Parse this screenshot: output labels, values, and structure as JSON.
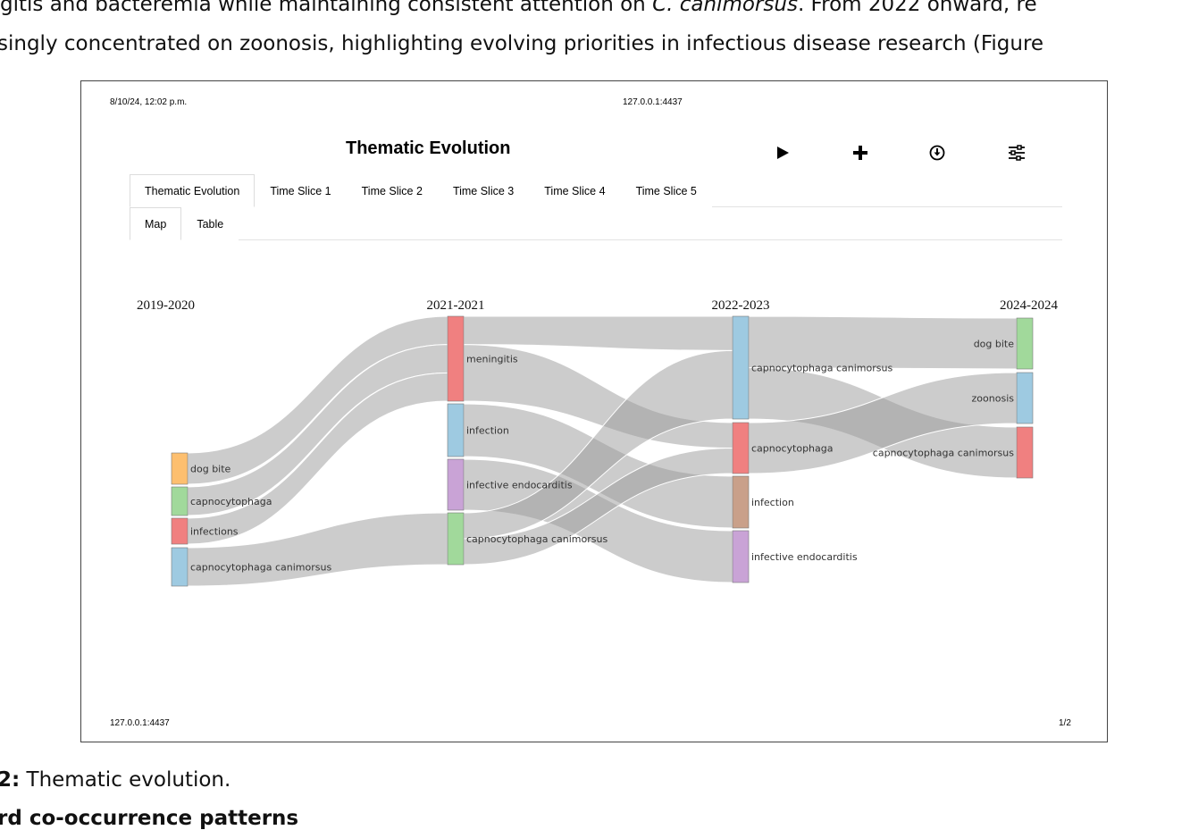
{
  "document": {
    "para_line_1_a": "gitis and bacteremia while maintaining consistent attention on ",
    "para_line_1_species": "C. canimorsus",
    "para_line_1_b": ". From 2022 onward, re",
    "para_line_2": "singly concentrated on zoonosis, highlighting evolving priorities in infectious disease research (Figure",
    "caption_label": "2:",
    "caption_text": " Thematic evolution.",
    "next_heading": "rd co-occurrence patterns"
  },
  "browser_print": {
    "date": "8/10/24, 12:02 p.m.",
    "url": "127.0.0.1:4437",
    "footer_url": "127.0.0.1:4437",
    "page": "1/2"
  },
  "app": {
    "title": "Thematic Evolution",
    "toolbar_icons": [
      "play-icon",
      "plus-icon",
      "download-icon",
      "settings-sliders-icon"
    ],
    "tabs": [
      {
        "label": "Thematic Evolution"
      },
      {
        "label": "Time Slice 1"
      },
      {
        "label": "Time Slice 2"
      },
      {
        "label": "Time Slice 3"
      },
      {
        "label": "Time Slice 4"
      },
      {
        "label": "Time Slice 5"
      }
    ],
    "active_tab": "Thematic Evolution",
    "subtabs": [
      {
        "label": "Map"
      },
      {
        "label": "Table"
      }
    ],
    "active_subtab": "Map"
  },
  "chart_data": {
    "type": "sankey",
    "periods": [
      "2019-2020",
      "2021-2021",
      "2022-2023",
      "2024-2024"
    ],
    "nodes": [
      {
        "id": "p1_dog_bite",
        "period": 0,
        "label": "dog bite",
        "color": "#fdbf6f"
      },
      {
        "id": "p1_capnocytophaga",
        "period": 0,
        "label": "capnocytophaga",
        "color": "#a1d99b"
      },
      {
        "id": "p1_infections",
        "period": 0,
        "label": "infections",
        "color": "#f08080"
      },
      {
        "id": "p1_capno_canimorsus",
        "period": 0,
        "label": "capnocytophaga canimorsus",
        "color": "#9ecae1"
      },
      {
        "id": "p2_meningitis",
        "period": 1,
        "label": "meningitis",
        "color": "#f08080"
      },
      {
        "id": "p2_infection",
        "period": 1,
        "label": "infection",
        "color": "#9ecae1"
      },
      {
        "id": "p2_infective_endocarditis",
        "period": 1,
        "label": "infective endocarditis",
        "color": "#c9a3d6"
      },
      {
        "id": "p2_capno_canimorsus",
        "period": 1,
        "label": "capnocytophaga canimorsus",
        "color": "#a1d99b"
      },
      {
        "id": "p3_capno_canimorsus",
        "period": 2,
        "label": "capnocytophaga canimorsus",
        "color": "#9ecae1"
      },
      {
        "id": "p3_capnocytophaga",
        "period": 2,
        "label": "capnocytophaga",
        "color": "#f08080"
      },
      {
        "id": "p3_infection",
        "period": 2,
        "label": "infection",
        "color": "#c9a08a"
      },
      {
        "id": "p3_infective_endocarditis",
        "period": 2,
        "label": "infective endocarditis",
        "color": "#c9a3d6"
      },
      {
        "id": "p4_dog_bite",
        "period": 3,
        "label": "dog bite",
        "color": "#a1d99b"
      },
      {
        "id": "p4_zoonosis",
        "period": 3,
        "label": "zoonosis",
        "color": "#9ecae1"
      },
      {
        "id": "p4_capno_canimorsus",
        "period": 3,
        "label": "capnocytophaga canimorsus",
        "color": "#f08080"
      }
    ],
    "links": [
      {
        "source": "p1_dog_bite",
        "target": "p2_meningitis",
        "value": 1
      },
      {
        "source": "p1_capnocytophaga",
        "target": "p2_meningitis",
        "value": 1
      },
      {
        "source": "p1_infections",
        "target": "p2_meningitis",
        "value": 1
      },
      {
        "source": "p1_capno_canimorsus",
        "target": "p2_capno_canimorsus",
        "value": 1
      },
      {
        "source": "p2_meningitis",
        "target": "p3_capno_canimorsus",
        "value": 0.5
      },
      {
        "source": "p2_meningitis",
        "target": "p3_capnocytophaga",
        "value": 1
      },
      {
        "source": "p2_infection",
        "target": "p3_infection",
        "value": 1
      },
      {
        "source": "p2_infective_endocarditis",
        "target": "p3_infective_endocarditis",
        "value": 1
      },
      {
        "source": "p2_capno_canimorsus",
        "target": "p3_capno_canimorsus",
        "value": 1
      },
      {
        "source": "p2_capno_canimorsus",
        "target": "p3_capnocytophaga",
        "value": 1
      },
      {
        "source": "p3_capno_canimorsus",
        "target": "p4_dog_bite",
        "value": 1
      },
      {
        "source": "p3_capno_canimorsus",
        "target": "p4_capno_canimorsus",
        "value": 1
      },
      {
        "source": "p3_capnocytophaga",
        "target": "p4_zoonosis",
        "value": 1
      }
    ]
  }
}
